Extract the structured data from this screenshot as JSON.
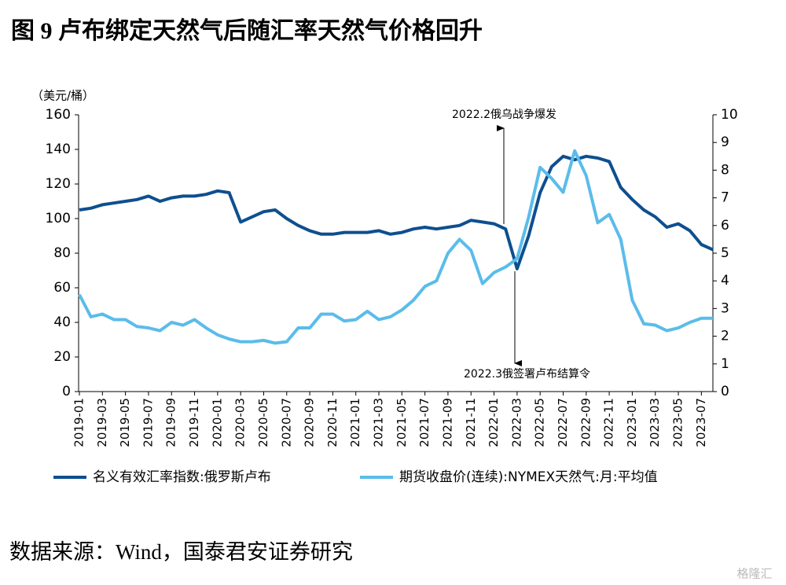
{
  "chart_data": {
    "type": "line",
    "title": "图 9 卢布绑定天然气后随汇率天然气价格回升",
    "y_label": "（美元/桶）",
    "source": "数据来源：Wind，国泰君安证券研究",
    "watermark": "格隆汇",
    "annotations": [
      "2022.2俄乌战争爆发",
      "2022.3俄签署卢布结算令"
    ],
    "categories": [
      "2019-01",
      null,
      "2019-03",
      null,
      "2019-05",
      null,
      "2019-07",
      null,
      "2019-09",
      null,
      "2019-11",
      null,
      "2020-01",
      null,
      "2020-03",
      null,
      "2020-05",
      null,
      "2020-07",
      null,
      "2020-09",
      null,
      "2020-11",
      null,
      "2021-01",
      null,
      "2021-03",
      null,
      "2021-05",
      null,
      "2021-07",
      null,
      "2021-09",
      null,
      "2021-11",
      null,
      "2022-01",
      null,
      "2022-03",
      null,
      "2022-05",
      null,
      "2022-07",
      null,
      "2022-09",
      null,
      "2022-11",
      null,
      "2023-01",
      null,
      "2023-03",
      null,
      "2023-05",
      null,
      "2023-07",
      null
    ],
    "series": [
      {
        "name": "名义有效汇率指数:俄罗斯卢布",
        "color": "#0e4f8f",
        "axis": "y",
        "values": [
          105,
          106,
          108,
          109,
          110,
          111,
          113,
          110,
          112,
          113,
          113,
          114,
          116,
          115,
          98,
          101,
          104,
          105,
          100,
          96,
          93,
          91,
          91,
          92,
          92,
          92,
          93,
          91,
          92,
          94,
          95,
          94,
          95,
          96,
          99,
          98,
          97,
          94,
          71,
          90,
          115,
          130,
          136,
          134,
          136,
          135,
          133,
          118,
          111,
          105,
          101,
          95,
          97,
          93,
          85,
          82
        ]
      },
      {
        "name": "期货收盘价(连续):NYMEX天然气:月:平均值",
        "color": "#5bbcea",
        "axis": "y2",
        "values": [
          3.5,
          2.7,
          2.8,
          2.6,
          2.6,
          2.35,
          2.3,
          2.2,
          2.5,
          2.4,
          2.6,
          2.3,
          2.05,
          1.9,
          1.8,
          1.8,
          1.85,
          1.75,
          1.8,
          2.3,
          2.3,
          2.8,
          2.8,
          2.55,
          2.6,
          2.9,
          2.6,
          2.7,
          2.95,
          3.3,
          3.8,
          4.0,
          5.0,
          5.5,
          5.1,
          3.9,
          4.3,
          4.5,
          4.8,
          6.3,
          8.1,
          7.7,
          7.2,
          8.7,
          7.8,
          6.1,
          6.4,
          5.5,
          3.3,
          2.45,
          2.4,
          2.2,
          2.3,
          2.5,
          2.65,
          2.65
        ]
      }
    ],
    "ylim": [
      0,
      160
    ],
    "yticks": [
      0,
      20,
      40,
      60,
      80,
      100,
      120,
      140,
      160
    ],
    "y2lim": [
      0,
      10
    ],
    "y2ticks": [
      0,
      1,
      2,
      3,
      4,
      5,
      6,
      7,
      8,
      9,
      10
    ],
    "grid": false,
    "legend": "bottom"
  }
}
